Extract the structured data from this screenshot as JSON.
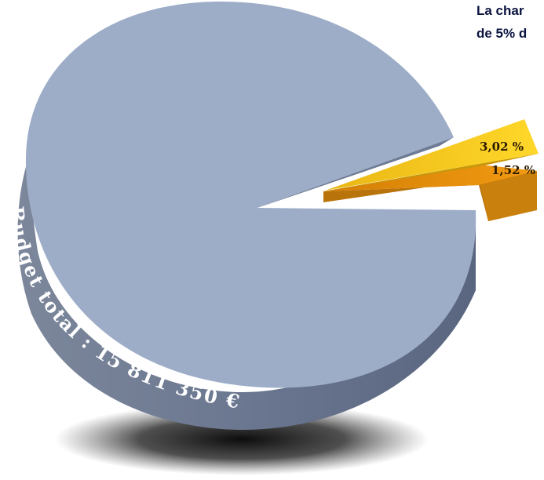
{
  "headline": {
    "line1": "La char",
    "line2": "de 5% d"
  },
  "chart_data": {
    "type": "pie",
    "title": "",
    "slices": [
      {
        "label": "",
        "value": 95.46,
        "color": "#9dadc8"
      },
      {
        "label": "3,02 %",
        "value": 3.02,
        "color": "#f5c518"
      },
      {
        "label": "1,52 %",
        "value": 1.52,
        "color": "#e9900a"
      }
    ],
    "rim_label": "Budget total : 15 811 350 €"
  }
}
